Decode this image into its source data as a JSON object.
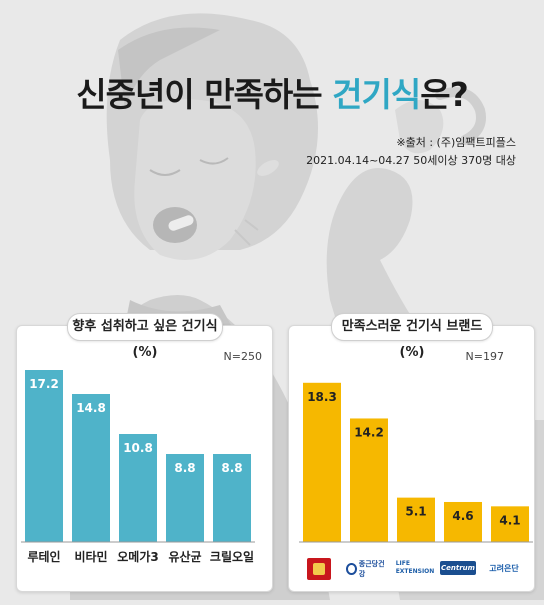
{
  "header": {
    "title_prefix": "신중년이 만족하는 ",
    "title_highlight": "건기식",
    "title_suffix": "은?",
    "source": "※출처 : (주)임팩트피플스",
    "period": "2021.04.14~04.27 50세이상 370명 대상"
  },
  "colors": {
    "accent": "#2fa7c4",
    "left_bar": "#4fb3c9",
    "right_bar": "#f6b800"
  },
  "chart_data": [
    {
      "type": "bar",
      "title": "향후 섭취하고 싶은 건기식 (%)",
      "n_label": "N=250",
      "categories": [
        "루테인",
        "비타민",
        "오메가3",
        "유산균",
        "크릴오일"
      ],
      "values": [
        17.2,
        14.8,
        10.8,
        8.8,
        8.8
      ],
      "ylim": [
        0,
        20
      ]
    },
    {
      "type": "bar",
      "title": "만족스러운 건기식 브랜드(%)",
      "n_label": "N=197",
      "categories": [
        "정관장",
        "종근당건강",
        "LIFE EXTENSION",
        "Centrum",
        "고려은단"
      ],
      "values": [
        18.3,
        14.2,
        5.1,
        4.6,
        4.1
      ],
      "ylim": [
        0,
        20
      ]
    }
  ],
  "brands": [
    {
      "icon": "jeonggwanjang-logo-icon",
      "text": ""
    },
    {
      "icon": "chongkundang-logo-icon",
      "text": "종근당건강"
    },
    {
      "icon": "life-extension-logo-icon",
      "text": "LIFE EXTENSION"
    },
    {
      "icon": "centrum-logo-icon",
      "text": "Centrum"
    },
    {
      "icon": "korea-eundan-logo-icon",
      "text": "고려은단"
    }
  ]
}
